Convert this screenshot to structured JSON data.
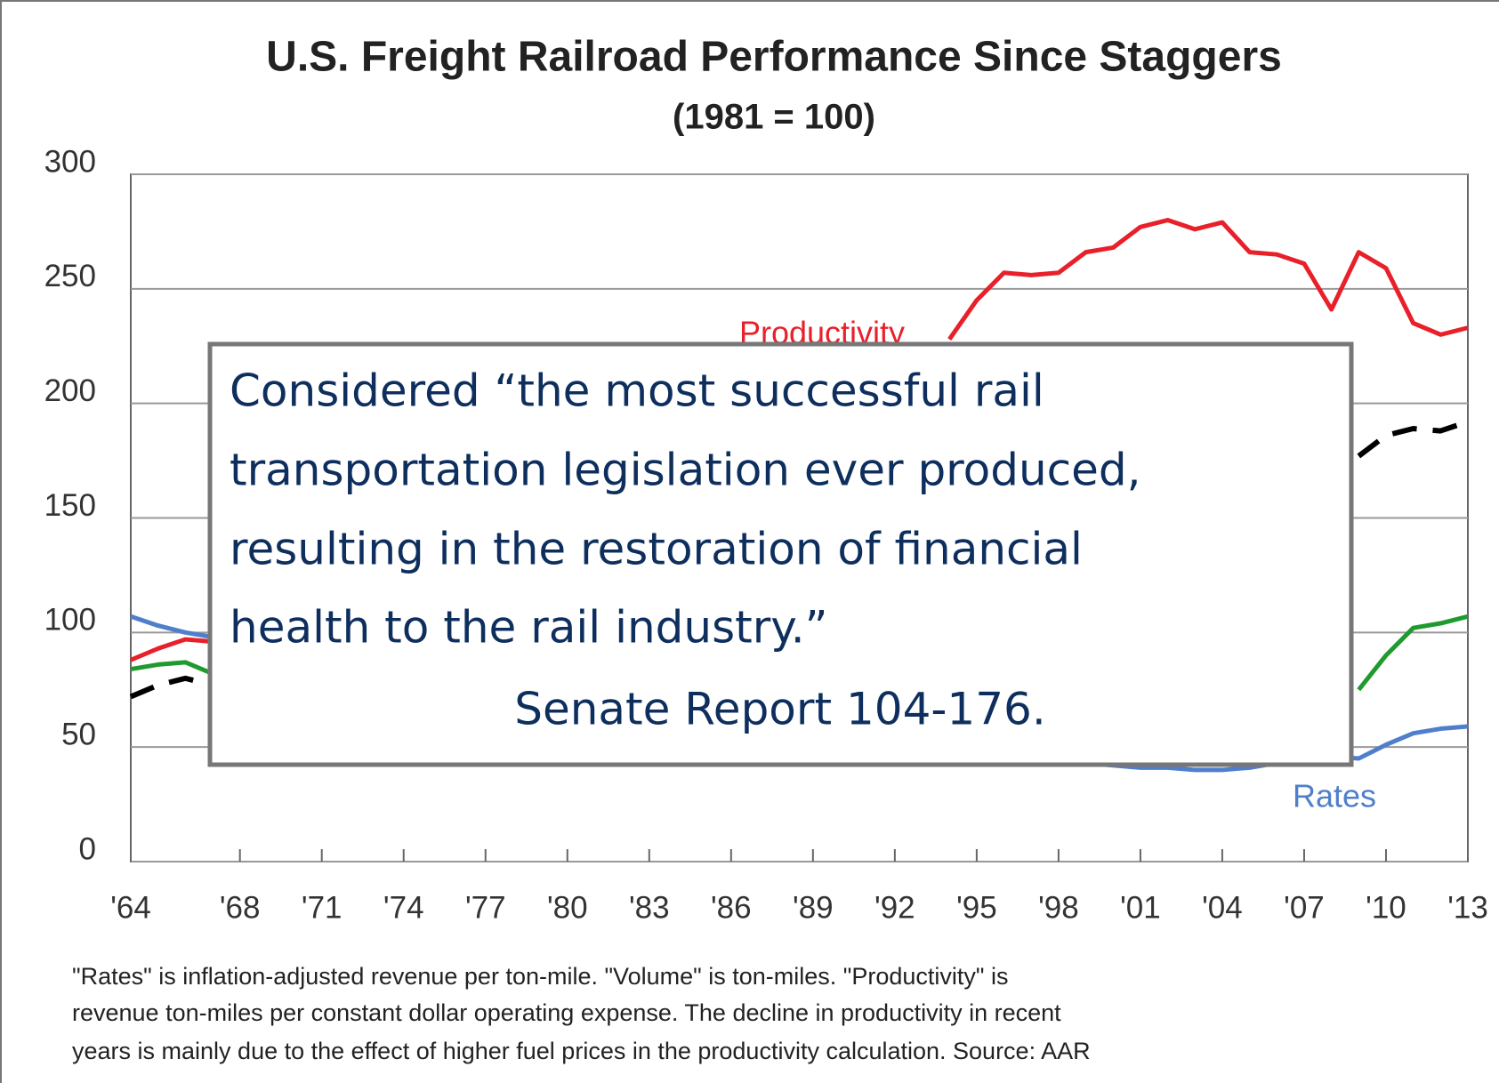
{
  "chart_data": {
    "type": "line",
    "title": "U.S. Freight Railroad Performance Since Staggers",
    "subtitle": "(1981 = 100)",
    "x": [
      1964,
      1965,
      1966,
      1967,
      1968,
      1969,
      1970,
      1971,
      1972,
      1973,
      1974,
      1975,
      1976,
      1977,
      1978,
      1979,
      1980,
      1981,
      1982,
      1983,
      1984,
      1985,
      1986,
      1987,
      1988,
      1989,
      1990,
      1991,
      1992,
      1993,
      1994,
      1995,
      1996,
      1997,
      1998,
      1999,
      2000,
      2001,
      2002,
      2003,
      2004,
      2005,
      2006,
      2007,
      2008,
      2009,
      2010,
      2011,
      2012,
      2013
    ],
    "series": [
      {
        "name": "Productivity",
        "color": "#e8202a",
        "linestyle": "solid",
        "values": [
          88,
          93,
          97,
          96,
          null,
          null,
          null,
          null,
          null,
          null,
          null,
          null,
          null,
          null,
          null,
          null,
          null,
          null,
          null,
          null,
          null,
          null,
          null,
          null,
          null,
          null,
          null,
          null,
          null,
          null,
          228,
          245,
          257,
          256,
          257,
          266,
          268,
          277,
          280,
          276,
          279,
          266,
          265,
          261,
          241,
          266,
          259,
          235,
          230,
          233
        ]
      },
      {
        "color": "#000000",
        "linestyle": "dashed",
        "values": [
          72,
          77,
          80,
          77,
          null,
          null,
          null,
          null,
          null,
          null,
          null,
          null,
          null,
          null,
          null,
          null,
          null,
          null,
          null,
          null,
          null,
          null,
          null,
          null,
          null,
          null,
          null,
          null,
          null,
          null,
          null,
          null,
          null,
          null,
          null,
          null,
          null,
          null,
          null,
          null,
          null,
          null,
          null,
          null,
          null,
          177,
          186,
          189,
          188,
          192
        ]
      },
      {
        "color": "#1f9a2e",
        "linestyle": "solid",
        "values": [
          84,
          86,
          87,
          82,
          null,
          null,
          null,
          null,
          null,
          null,
          null,
          null,
          null,
          null,
          null,
          null,
          null,
          null,
          null,
          null,
          null,
          null,
          null,
          null,
          null,
          null,
          null,
          null,
          null,
          null,
          null,
          null,
          null,
          null,
          null,
          null,
          null,
          null,
          null,
          null,
          null,
          null,
          null,
          null,
          null,
          75,
          90,
          102,
          104,
          107
        ]
      },
      {
        "name": "Rates",
        "color": "#4f7fcb",
        "linestyle": "solid",
        "values": [
          107,
          103,
          100,
          98,
          null,
          null,
          null,
          null,
          null,
          null,
          null,
          null,
          null,
          null,
          null,
          null,
          null,
          null,
          null,
          null,
          null,
          null,
          null,
          null,
          null,
          null,
          null,
          null,
          null,
          null,
          null,
          null,
          null,
          null,
          44,
          43,
          42,
          41,
          41,
          40,
          40,
          41,
          43,
          45,
          46,
          45,
          51,
          56,
          58,
          59
        ]
      }
    ],
    "xlim": [
      1964,
      2013
    ],
    "xticks": [
      {
        "value": 1964,
        "label": "'64"
      },
      {
        "value": 1968,
        "label": "'68"
      },
      {
        "value": 1971,
        "label": "'71"
      },
      {
        "value": 1974,
        "label": "'74"
      },
      {
        "value": 1977,
        "label": "'77"
      },
      {
        "value": 1980,
        "label": "'80"
      },
      {
        "value": 1983,
        "label": "'83"
      },
      {
        "value": 1986,
        "label": "'86"
      },
      {
        "value": 1989,
        "label": "'89"
      },
      {
        "value": 1992,
        "label": "'92"
      },
      {
        "value": 1995,
        "label": "'95"
      },
      {
        "value": 1998,
        "label": "'98"
      },
      {
        "value": 2001,
        "label": "'01"
      },
      {
        "value": 2004,
        "label": "'04"
      },
      {
        "value": 2007,
        "label": "'07"
      },
      {
        "value": 2010,
        "label": "'10"
      },
      {
        "value": 2013,
        "label": "'13"
      }
    ],
    "ylim": [
      0,
      300
    ],
    "yticks": [
      0,
      50,
      100,
      150,
      200,
      250,
      300
    ],
    "grid": true,
    "footnote": [
      "\"Rates\" is inflation-adjusted revenue per ton-mile.  \"Volume\" is ton-miles.  \"Productivity\" is",
      "revenue ton-miles per constant dollar operating expense.  The decline in productivity in recent",
      "years is mainly due to the effect of higher fuel prices in the productivity calculation.  Source: AAR"
    ],
    "quote": {
      "lines": [
        "Considered “the most successful rail",
        "transportation legislation ever produced,",
        "resulting in the restoration of financial",
        "health to the rail industry.”"
      ],
      "attribution": "Senate Report 104-176."
    }
  }
}
